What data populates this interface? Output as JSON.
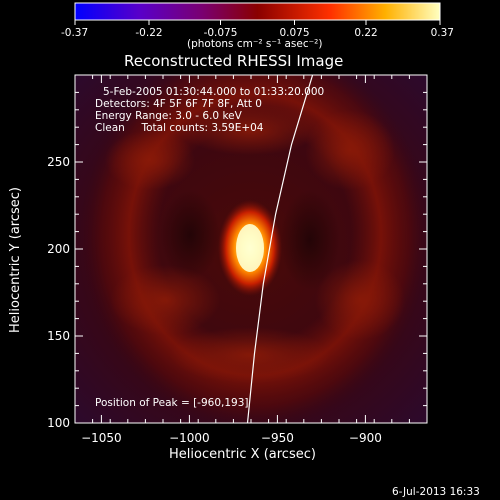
{
  "colorbar": {
    "ticks": [
      "-0.37",
      "-0.22",
      "-0.075",
      "0.075",
      "0.22",
      "0.37"
    ],
    "tick_values": [
      -0.37,
      -0.22,
      -0.075,
      0.075,
      0.22,
      0.37
    ],
    "range": [
      -0.37,
      0.37
    ],
    "units_label": "(photons cm⁻² s⁻¹ asec⁻²)"
  },
  "plot": {
    "title": "Reconstructed RHESSI Image",
    "info_lines": [
      "5-Feb-2005 01:30:44.000 to 01:33:20.000",
      "Detectors: 4F 5F 6F 7F 8F, Att 0",
      "Energy Range: 3.0 - 6.0 keV",
      "Clean     Total counts: 3.59E+04"
    ],
    "peak_label": "Position of Peak = [-960,193]",
    "timestamp": "6-Jul-2013 16:33"
  },
  "chart_data": {
    "type": "heatmap",
    "title": "Reconstructed RHESSI Image",
    "xlabel": "Heliocentric X (arcsec)",
    "ylabel": "Heliocentric Y (arcsec)",
    "xlim": [
      -1065,
      -865
    ],
    "ylim": [
      100,
      300
    ],
    "x_ticks": [
      -1050,
      -1000,
      -950,
      -900
    ],
    "x_tick_labels": [
      "−1050",
      "−1000",
      "−950",
      "−900"
    ],
    "y_ticks": [
      100,
      150,
      200,
      250
    ],
    "y_tick_labels": [
      "100",
      "150",
      "200",
      "250"
    ],
    "peak": {
      "x": -960,
      "y": 193
    },
    "colormap": "red-temperature",
    "limb_curve": [
      [
        -967,
        100
      ],
      [
        -963,
        140
      ],
      [
        -958,
        180
      ],
      [
        -951,
        220
      ],
      [
        -942,
        260
      ],
      [
        -930,
        300
      ]
    ],
    "colors": {
      "background": "#000000",
      "text": "#ffffff",
      "limb": "#ffffff"
    }
  }
}
